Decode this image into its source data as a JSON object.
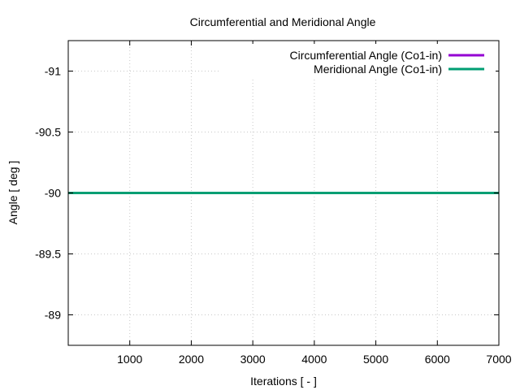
{
  "chart_data": {
    "type": "line",
    "title": "Circumferential and Meridional Angle",
    "xlabel": "Iterations [ - ]",
    "ylabel": "Angle [ deg ]",
    "xlim": [
      0,
      7000
    ],
    "ylim": [
      -91.25,
      -88.75
    ],
    "y_reversed": true,
    "xticks": [
      1000,
      2000,
      3000,
      4000,
      5000,
      6000,
      7000
    ],
    "xtick_labels": [
      "1000",
      "2000",
      "3000",
      "4000",
      "5000",
      "6000",
      "7000"
    ],
    "yticks": [
      -91,
      -90.5,
      -90,
      -89.5,
      -89
    ],
    "ytick_labels": [
      "-91",
      "-90.5",
      "-90",
      "-89.5",
      "-89"
    ],
    "grid": true,
    "legend_position": "top-right",
    "series": [
      {
        "name": "Circumferential Angle (Co1-in)",
        "color": "#9400d3",
        "x": [
          0,
          7000
        ],
        "y": [
          -90,
          -90
        ]
      },
      {
        "name": "Meridional Angle (Co1-in)",
        "color": "#009e73",
        "x": [
          0,
          7000
        ],
        "y": [
          -90,
          -90
        ]
      }
    ]
  }
}
